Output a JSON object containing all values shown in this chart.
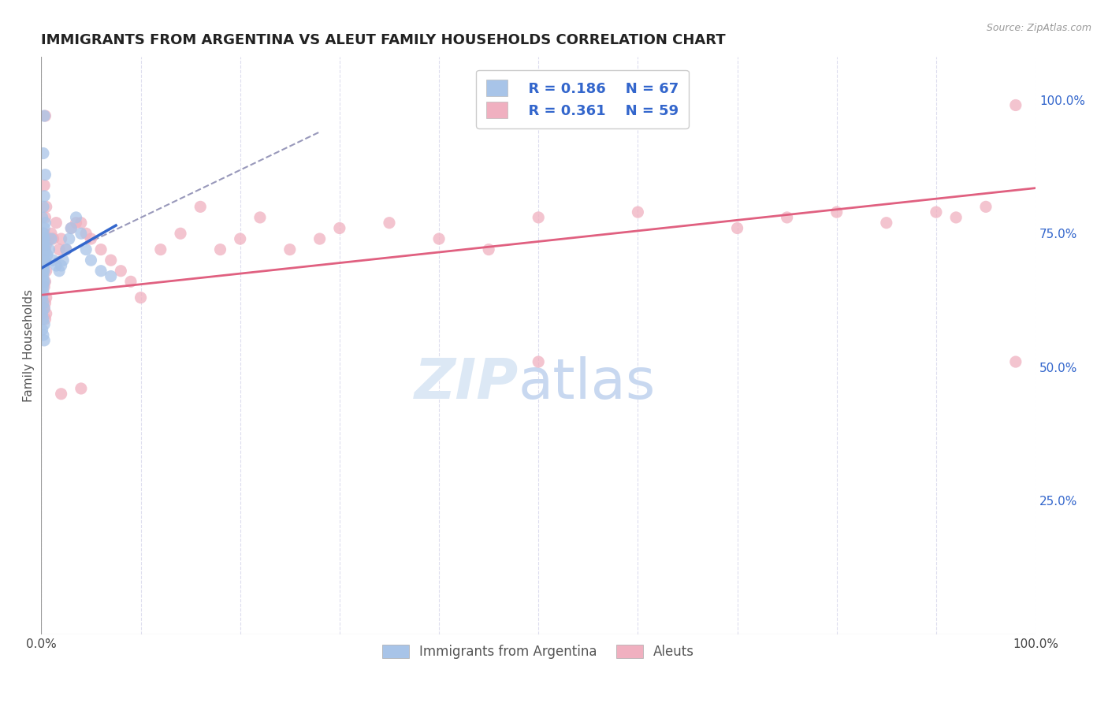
{
  "title": "IMMIGRANTS FROM ARGENTINA VS ALEUT FAMILY HOUSEHOLDS CORRELATION CHART",
  "source": "Source: ZipAtlas.com",
  "ylabel": "Family Households",
  "right_yticks": [
    "100.0%",
    "75.0%",
    "50.0%",
    "25.0%"
  ],
  "right_ytick_vals": [
    1.0,
    0.75,
    0.5,
    0.25
  ],
  "legend_r1": "R = 0.186",
  "legend_n1": "N = 67",
  "legend_r2": "R = 0.361",
  "legend_n2": "N = 59",
  "legend_labels": [
    "Immigrants from Argentina",
    "Aleuts"
  ],
  "blue_color": "#a8c4e8",
  "pink_color": "#f0b0c0",
  "blue_line_color": "#3366cc",
  "pink_line_color": "#e06080",
  "dashed_line_color": "#9999bb",
  "watermark_zip_color": "#dce8f5",
  "watermark_atlas_color": "#c8d8f0",
  "background_color": "#ffffff",
  "grid_color": "#ddddee",
  "xlim": [
    0.0,
    1.0
  ],
  "ylim": [
    0.0,
    1.08
  ],
  "blue_scatter_x": [
    0.003,
    0.002,
    0.004,
    0.003,
    0.002,
    0.001,
    0.004,
    0.003,
    0.002,
    0.001,
    0.003,
    0.002,
    0.001,
    0.003,
    0.002,
    0.003,
    0.002,
    0.001,
    0.002,
    0.003,
    0.002,
    0.001,
    0.003,
    0.002,
    0.001,
    0.002,
    0.003,
    0.002,
    0.001,
    0.002,
    0.003,
    0.002,
    0.001,
    0.003,
    0.002,
    0.001,
    0.002,
    0.003,
    0.001,
    0.002,
    0.002,
    0.001,
    0.002,
    0.003,
    0.001,
    0.002,
    0.003,
    0.001,
    0.002,
    0.003,
    0.01,
    0.008,
    0.006,
    0.012,
    0.015,
    0.018,
    0.02,
    0.022,
    0.025,
    0.028,
    0.03,
    0.035,
    0.04,
    0.045,
    0.05,
    0.06,
    0.07
  ],
  "blue_scatter_y": [
    0.97,
    0.9,
    0.86,
    0.82,
    0.8,
    0.78,
    0.77,
    0.76,
    0.75,
    0.75,
    0.74,
    0.74,
    0.73,
    0.73,
    0.73,
    0.72,
    0.72,
    0.72,
    0.72,
    0.72,
    0.72,
    0.71,
    0.71,
    0.71,
    0.7,
    0.7,
    0.7,
    0.7,
    0.7,
    0.69,
    0.69,
    0.68,
    0.68,
    0.68,
    0.67,
    0.67,
    0.66,
    0.66,
    0.65,
    0.65,
    0.64,
    0.63,
    0.62,
    0.61,
    0.6,
    0.59,
    0.58,
    0.57,
    0.56,
    0.55,
    0.74,
    0.72,
    0.71,
    0.7,
    0.69,
    0.68,
    0.69,
    0.7,
    0.72,
    0.74,
    0.76,
    0.78,
    0.75,
    0.72,
    0.7,
    0.68,
    0.67
  ],
  "pink_scatter_x": [
    0.004,
    0.003,
    0.005,
    0.004,
    0.003,
    0.005,
    0.004,
    0.003,
    0.005,
    0.004,
    0.003,
    0.005,
    0.004,
    0.003,
    0.005,
    0.004,
    0.008,
    0.01,
    0.012,
    0.015,
    0.018,
    0.02,
    0.025,
    0.03,
    0.035,
    0.04,
    0.045,
    0.05,
    0.06,
    0.07,
    0.08,
    0.09,
    0.1,
    0.12,
    0.14,
    0.16,
    0.18,
    0.2,
    0.22,
    0.25,
    0.28,
    0.3,
    0.35,
    0.4,
    0.45,
    0.5,
    0.6,
    0.7,
    0.75,
    0.8,
    0.85,
    0.9,
    0.92,
    0.95,
    0.98,
    0.02,
    0.04,
    0.5,
    0.98
  ],
  "pink_scatter_y": [
    0.97,
    0.84,
    0.8,
    0.78,
    0.75,
    0.73,
    0.72,
    0.7,
    0.68,
    0.66,
    0.65,
    0.63,
    0.62,
    0.61,
    0.6,
    0.59,
    0.74,
    0.75,
    0.74,
    0.77,
    0.72,
    0.74,
    0.72,
    0.76,
    0.77,
    0.77,
    0.75,
    0.74,
    0.72,
    0.7,
    0.68,
    0.66,
    0.63,
    0.72,
    0.75,
    0.8,
    0.72,
    0.74,
    0.78,
    0.72,
    0.74,
    0.76,
    0.77,
    0.74,
    0.72,
    0.78,
    0.79,
    0.76,
    0.78,
    0.79,
    0.77,
    0.79,
    0.78,
    0.8,
    0.99,
    0.45,
    0.46,
    0.51,
    0.51
  ],
  "blue_trend_x": [
    0.0,
    0.075
  ],
  "blue_trend_y": [
    0.685,
    0.765
  ],
  "pink_trend_x": [
    0.0,
    1.0
  ],
  "pink_trend_y": [
    0.635,
    0.835
  ],
  "dashed_trend_x": [
    0.005,
    0.28
  ],
  "dashed_trend_y": [
    0.695,
    0.94
  ]
}
